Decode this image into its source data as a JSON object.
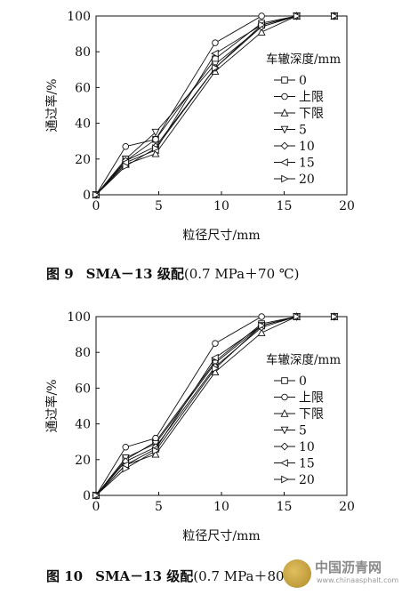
{
  "chart_data": [
    {
      "type": "line",
      "xlabel": "粒径尺寸/mm",
      "ylabel": "通过率/%",
      "xlim": [
        0,
        20
      ],
      "ylim": [
        0,
        100
      ],
      "x_ticks": [
        "0",
        "5",
        "10",
        "15",
        "20"
      ],
      "y_ticks": [
        "0",
        "20",
        "40",
        "60",
        "80",
        "100"
      ],
      "legend_title": "车辙深度/mm",
      "legend_position": "right",
      "x": [
        0,
        2.36,
        4.75,
        9.5,
        13.2,
        16,
        19
      ],
      "series": [
        {
          "name": "0",
          "marker": "square",
          "values": [
            0,
            19,
            31,
            76,
            96,
            100,
            100
          ]
        },
        {
          "name": "上限",
          "marker": "circle",
          "values": [
            0,
            27,
            31,
            85,
            100,
            100,
            100
          ]
        },
        {
          "name": "下限",
          "marker": "triangle-up",
          "values": [
            0,
            17,
            23,
            69,
            91,
            100,
            100
          ]
        },
        {
          "name": "5",
          "marker": "triangle-down",
          "values": [
            0,
            20,
            35,
            73,
            94,
            100,
            100
          ]
        },
        {
          "name": "10",
          "marker": "diamond",
          "values": [
            0,
            19,
            27,
            71,
            94,
            100,
            100
          ]
        },
        {
          "name": "15",
          "marker": "triangle-left",
          "values": [
            0,
            18,
            25,
            79,
            95,
            100,
            100
          ]
        },
        {
          "name": "20",
          "marker": "triangle-right",
          "values": [
            0,
            16,
            26,
            71,
            95,
            100,
            100
          ]
        }
      ]
    },
    {
      "type": "line",
      "xlabel": "粒径尺寸/mm",
      "ylabel": "通过率/%",
      "xlim": [
        0,
        20
      ],
      "ylim": [
        0,
        100
      ],
      "x_ticks": [
        "0",
        "5",
        "10",
        "15",
        "20"
      ],
      "y_ticks": [
        "0",
        "20",
        "40",
        "60",
        "80",
        "100"
      ],
      "legend_title": "车辙深度/mm",
      "legend_position": "right",
      "x": [
        0,
        2.36,
        4.75,
        9.5,
        13.2,
        16,
        19
      ],
      "series": [
        {
          "name": "0",
          "marker": "square",
          "values": [
            0,
            20,
            30,
            75,
            96,
            100,
            100
          ]
        },
        {
          "name": "上限",
          "marker": "circle",
          "values": [
            0,
            27,
            32,
            85,
            100,
            100,
            100
          ]
        },
        {
          "name": "下限",
          "marker": "triangle-up",
          "values": [
            0,
            17,
            23,
            69,
            91,
            100,
            100
          ]
        },
        {
          "name": "5",
          "marker": "triangle-down",
          "values": [
            0,
            21,
            29,
            74,
            95,
            100,
            100
          ]
        },
        {
          "name": "10",
          "marker": "diamond",
          "values": [
            0,
            19,
            27,
            72,
            94,
            100,
            100
          ]
        },
        {
          "name": "15",
          "marker": "triangle-left",
          "values": [
            0,
            17,
            26,
            77,
            95,
            100,
            100
          ]
        },
        {
          "name": "20",
          "marker": "triangle-right",
          "values": [
            0,
            15,
            25,
            71,
            95,
            100,
            100
          ]
        }
      ]
    }
  ],
  "captions": [
    {
      "number": "图 9",
      "title": "SMA－13 级配",
      "condition": "(0.7 MPa＋70 ℃)"
    },
    {
      "number": "图 10",
      "title": "SMA－13 级配",
      "condition": "(0.7 MPa＋80 ℃)"
    }
  ],
  "watermark": {
    "name": "中国沥青网",
    "url": "www.chinaasphalt.com"
  }
}
